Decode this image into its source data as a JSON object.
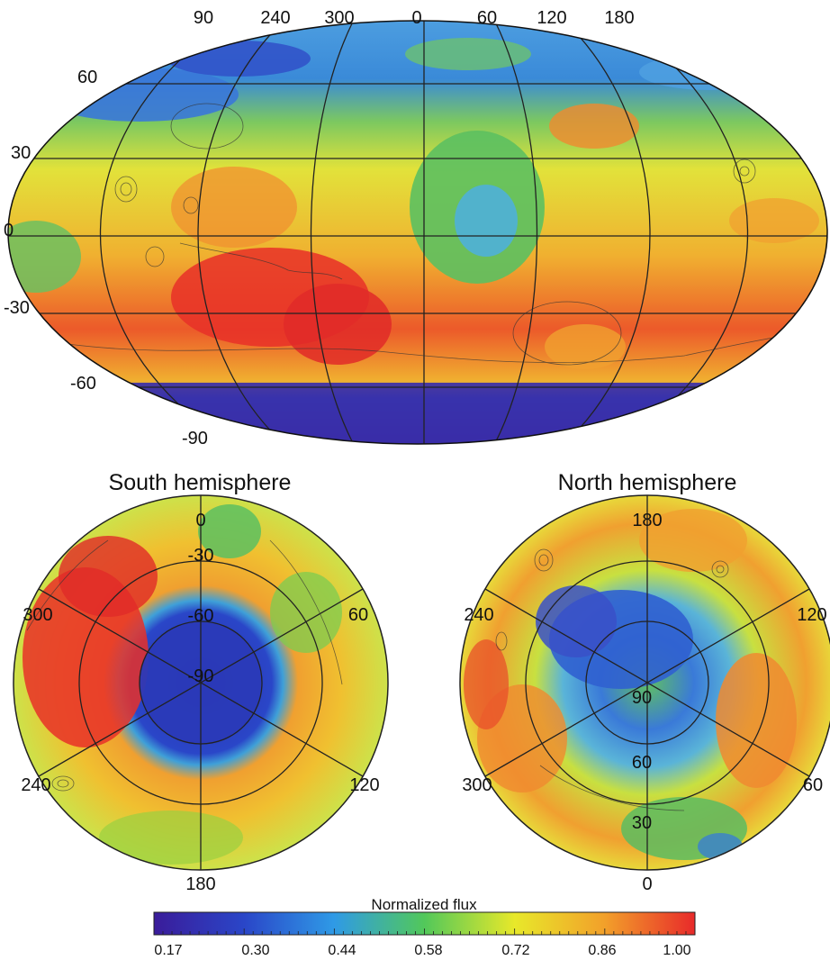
{
  "global_map": {
    "longitude_labels": [
      "90",
      "240",
      "300",
      "0",
      "60",
      "120",
      "180"
    ],
    "latitude_labels": [
      "60",
      "30",
      "0",
      "-30",
      "-60",
      "-90"
    ]
  },
  "south_panel": {
    "title": "South hemisphere",
    "longitude_labels": [
      "0",
      "60",
      "120",
      "180",
      "240",
      "300"
    ],
    "latitude_labels": [
      "-30",
      "-60",
      "-90"
    ]
  },
  "north_panel": {
    "title": "North hemisphere",
    "longitude_labels": [
      "180",
      "120",
      "60",
      "0",
      "300",
      "240"
    ],
    "latitude_labels": [
      "30",
      "60",
      "90"
    ]
  },
  "colorbar": {
    "title": "Normalized flux",
    "ticks": [
      "0.17",
      "0.30",
      "0.44",
      "0.58",
      "0.72",
      "0.86",
      "1.00"
    ],
    "colors": [
      "#3a1c9a",
      "#2a46c8",
      "#2f9ae6",
      "#52c85a",
      "#e8e82a",
      "#f2a02a",
      "#e82a2a"
    ]
  }
}
